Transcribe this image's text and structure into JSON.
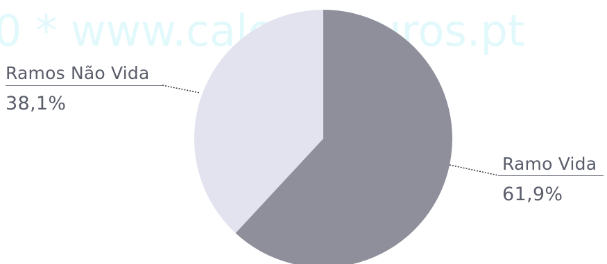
{
  "watermark": "0 * www.calcoseguros.pt",
  "chart_data": {
    "type": "pie",
    "title": "",
    "slices": [
      {
        "label": "Ramo Vida",
        "value": 61.9,
        "value_label": "61,9%",
        "color": "#8e8f9b"
      },
      {
        "label": "Ramos Não Vida",
        "value": 38.1,
        "value_label": "38,1%",
        "color": "#e2e3ee"
      }
    ],
    "start_angle_deg": 0,
    "direction": "clockwise",
    "labels_outside": true,
    "legend": "none"
  }
}
